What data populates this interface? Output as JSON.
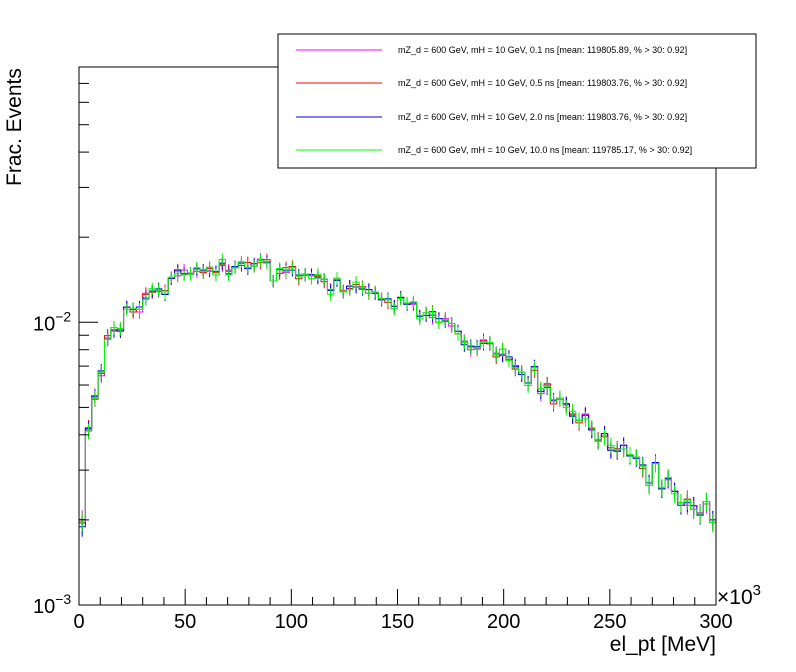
{
  "chart_data": {
    "type": "histogram",
    "xlabel": "el_pt [MeV]",
    "ylabel": "Frac. Events",
    "x_multiplier_label": "×10",
    "x_multiplier_exp": "3",
    "xlim": [
      0,
      300000
    ],
    "ylim": [
      0.001,
      0.08
    ],
    "yscale": "log",
    "x_ticks": [
      {
        "value": 0,
        "label": "0"
      },
      {
        "value": 50000,
        "label": "50"
      },
      {
        "value": 100000,
        "label": "100"
      },
      {
        "value": 150000,
        "label": "150"
      },
      {
        "value": 200000,
        "label": "200"
      },
      {
        "value": 250000,
        "label": "250"
      },
      {
        "value": 300000,
        "label": "300"
      }
    ],
    "y_ticks": [
      {
        "value": 0.001,
        "base": "10",
        "exp": "−3"
      },
      {
        "value": 0.01,
        "base": "10",
        "exp": "−2"
      }
    ],
    "bin_width": 3000,
    "legend_position": "top-right",
    "series": [
      {
        "name": "mZ_d = 600 GeV, mH = 10 GeV, 0.1 ns [mean: 119805.89, % > 30: 0.92]",
        "color": "#ff00ff"
      },
      {
        "name": "mZ_d = 600 GeV, mH = 10 GeV, 0.5 ns [mean: 119803.76, % > 30: 0.92]",
        "color": "#ff0000"
      },
      {
        "name": "mZ_d = 600 GeV, mH = 10 GeV, 2.0 ns [mean: 119803.76, % > 30: 0.92]",
        "color": "#0000ff"
      },
      {
        "name": "mZ_d = 600 GeV, mH = 10 GeV, 10.0 ns [mean: 119785.17, % > 30: 0.92]",
        "color": "#00ff00"
      }
    ],
    "values": [
      0.00195,
      0.0042,
      0.0054,
      0.0066,
      0.0088,
      0.0094,
      0.0095,
      0.0112,
      0.0111,
      0.0111,
      0.0123,
      0.0129,
      0.013,
      0.0128,
      0.0143,
      0.0149,
      0.015,
      0.0148,
      0.0153,
      0.0153,
      0.0155,
      0.0147,
      0.0162,
      0.015,
      0.0156,
      0.0162,
      0.0158,
      0.0158,
      0.0164,
      0.0165,
      0.014,
      0.0152,
      0.0153,
      0.0156,
      0.0144,
      0.0148,
      0.0146,
      0.0145,
      0.0142,
      0.0127,
      0.0142,
      0.0128,
      0.0133,
      0.0136,
      0.0131,
      0.0128,
      0.0128,
      0.012,
      0.012,
      0.0114,
      0.0119,
      0.0117,
      0.0117,
      0.0104,
      0.0108,
      0.0106,
      0.0101,
      0.0102,
      0.0098,
      0.0093,
      0.0085,
      0.008,
      0.0082,
      0.0085,
      0.0084,
      0.0077,
      0.0078,
      0.0074,
      0.0069,
      0.0066,
      0.0061,
      0.0069,
      0.0057,
      0.006,
      0.0052,
      0.0054,
      0.0051,
      0.0047,
      0.0045,
      0.0046,
      0.0042,
      0.0038,
      0.004,
      0.0036,
      0.0035,
      0.0036,
      0.0034,
      0.0033,
      0.0031,
      0.0027,
      0.0031,
      0.0026,
      0.0028,
      0.0025,
      0.0023,
      0.0023,
      0.0022,
      0.0021,
      0.0023,
      0.002
    ],
    "series_offsets": [
      [
        1.03,
        0.99,
        1.02,
        0.98,
        1.0,
        1.02,
        0.99,
        1.01,
        1.0,
        0.98,
        1.03,
        1.0,
        0.99,
        1.01,
        1.0,
        0.98,
        1.02,
        1.01,
        0.99,
        1.0,
        1.01,
        1.0,
        0.98,
        1.02,
        1.0,
        1.01,
        0.99,
        1.0,
        1.02,
        0.99,
        1.0,
        1.01,
        0.98,
        1.0,
        1.02,
        0.99,
        1.0,
        1.01,
        1.0,
        1.03,
        0.99,
        1.0,
        1.01,
        0.98,
        1.0,
        1.02,
        0.99,
        1.01,
        1.0,
        0.98,
        1.03,
        1.0,
        0.99,
        1.01,
        1.0,
        0.98,
        1.02,
        1.01,
        0.99,
        1.0,
        1.01,
        1.0,
        0.98,
        1.02,
        1.0,
        1.01,
        0.99,
        1.0,
        1.02,
        0.99,
        1.0,
        1.01,
        0.98,
        1.0,
        1.02,
        0.99,
        1.0,
        1.01,
        1.0,
        1.03,
        0.99,
        1.0,
        1.01,
        0.98,
        1.0,
        1.02,
        0.99,
        1.01,
        1.0,
        0.98,
        1.03,
        1.0,
        0.99,
        1.01,
        1.0,
        0.98,
        1.02,
        1.01,
        0.99,
        1.0
      ],
      [
        1.0,
        1.01,
        0.99,
        1.0,
        1.02,
        0.99,
        1.0,
        1.01,
        0.98,
        1.0,
        1.02,
        0.99,
        1.0,
        1.01,
        1.0,
        1.03,
        0.99,
        1.0,
        1.01,
        0.98,
        1.0,
        1.02,
        0.99,
        1.01,
        1.0,
        0.98,
        1.03,
        1.0,
        0.99,
        1.01,
        1.0,
        0.98,
        1.02,
        1.01,
        0.99,
        1.0,
        1.01,
        1.0,
        0.98,
        1.02,
        1.0,
        1.01,
        0.99,
        1.0,
        1.02,
        0.99,
        1.0,
        1.01,
        0.98,
        1.0,
        1.02,
        0.99,
        1.0,
        1.01,
        1.0,
        1.03,
        0.99,
        1.0,
        1.01,
        0.98,
        1.0,
        1.02,
        0.99,
        1.01,
        1.0,
        0.98,
        1.03,
        1.0,
        0.99,
        1.01,
        1.0,
        0.98,
        1.02,
        1.01,
        0.99,
        1.0,
        1.01,
        1.0,
        0.98,
        1.02,
        1.0,
        1.01,
        0.99,
        1.0,
        1.02,
        0.99,
        1.0,
        1.01,
        0.98,
        1.0,
        1.02,
        0.99,
        1.0,
        1.01,
        1.0,
        1.03,
        0.99,
        1.0,
        1.01,
        0.98
      ],
      [
        0.97,
        1.0,
        1.01,
        1.02,
        0.99,
        1.0,
        0.98,
        1.01,
        1.0,
        1.02,
        0.99,
        1.0,
        1.01,
        0.98,
        1.0,
        1.02,
        0.99,
        1.0,
        1.01,
        1.0,
        0.98,
        1.03,
        1.0,
        0.99,
        1.01,
        1.0,
        0.98,
        1.02,
        1.01,
        0.99,
        1.0,
        1.01,
        1.0,
        0.98,
        1.02,
        1.0,
        1.01,
        0.99,
        1.0,
        1.02,
        0.99,
        1.0,
        1.01,
        0.98,
        1.0,
        1.02,
        0.99,
        1.0,
        1.01,
        1.0,
        1.03,
        0.99,
        1.0,
        1.01,
        0.98,
        1.0,
        1.02,
        0.99,
        1.01,
        1.0,
        0.98,
        1.03,
        1.0,
        0.99,
        1.01,
        1.0,
        0.98,
        1.02,
        1.01,
        0.99,
        1.0,
        1.01,
        1.0,
        0.98,
        1.02,
        1.0,
        1.01,
        0.99,
        1.0,
        1.02,
        0.99,
        1.0,
        1.01,
        0.98,
        1.0,
        1.02,
        0.99,
        1.0,
        1.01,
        1.0,
        1.03,
        0.99,
        1.0,
        1.01,
        0.98,
        1.0,
        1.02,
        0.99,
        1.01,
        1.0
      ],
      [
        1.01,
        0.98,
        1.0,
        1.01,
        0.99,
        1.02,
        1.0,
        0.99,
        1.01,
        1.0,
        0.98,
        1.02,
        1.0,
        0.99,
        1.01,
        1.0,
        0.98,
        1.0,
        1.02,
        0.99,
        1.01,
        1.0,
        1.03,
        0.98,
        1.0,
        1.01,
        0.99,
        1.0,
        1.01,
        0.98,
        1.0,
        1.02,
        0.99,
        1.0,
        1.01,
        1.0,
        0.98,
        1.02,
        1.0,
        0.99,
        1.01,
        1.0,
        0.98,
        1.02,
        1.01,
        0.99,
        1.0,
        1.01,
        1.0,
        0.98,
        1.02,
        1.0,
        1.01,
        0.99,
        1.0,
        1.02,
        0.99,
        1.0,
        1.01,
        0.98,
        1.0,
        1.02,
        0.99,
        1.0,
        1.01,
        1.0,
        1.03,
        0.99,
        1.0,
        1.01,
        0.98,
        1.0,
        1.02,
        0.99,
        1.01,
        1.0,
        0.98,
        1.03,
        1.0,
        0.99,
        1.01,
        1.0,
        0.98,
        1.02,
        1.01,
        0.99,
        1.0,
        1.01,
        1.0,
        0.98,
        1.02,
        1.0,
        1.01,
        0.99,
        1.0,
        1.02,
        0.99,
        1.0,
        1.01,
        0.98
      ]
    ]
  }
}
